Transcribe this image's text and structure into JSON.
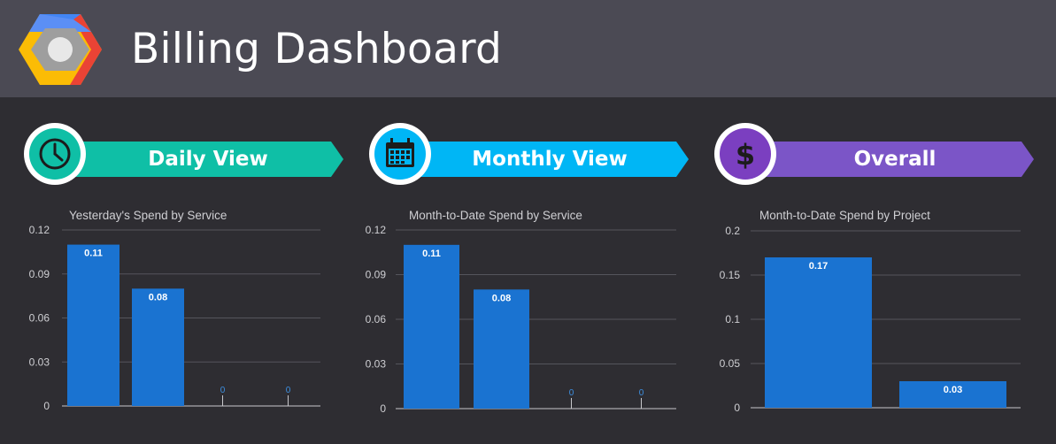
{
  "header": {
    "title": "Billing Dashboard",
    "logo_icon": "google-cloud-logo-icon"
  },
  "sections": [
    {
      "label": "Daily View",
      "icon": "clock-icon",
      "color": "#0fbfa6"
    },
    {
      "label": "Monthly View",
      "icon": "calendar-icon",
      "color": "#00b6f5"
    },
    {
      "label": "Overall",
      "icon": "dollar-icon",
      "color": "#7b55c7"
    }
  ],
  "chart_data": [
    {
      "type": "bar",
      "title": "Yesterday's Spend by Service",
      "categories": [
        "",
        "",
        "",
        ""
      ],
      "values": [
        0.11,
        0.08,
        0,
        0
      ],
      "data_labels": [
        "0.11",
        "0.08",
        "0",
        "0"
      ],
      "yticks": [
        "0.12",
        "0.09",
        "0.06",
        "0.03",
        "0"
      ],
      "ylim": [
        0,
        0.12
      ],
      "grid": true,
      "color": "#1a73d1"
    },
    {
      "type": "bar",
      "title": "Month-to-Date Spend by Service",
      "categories": [
        "",
        "",
        "",
        ""
      ],
      "values": [
        0.11,
        0.08,
        0,
        0
      ],
      "data_labels": [
        "0.11",
        "0.08",
        "0",
        "0"
      ],
      "yticks": [
        "0.12",
        "0.09",
        "0.06",
        "0.03",
        "0"
      ],
      "ylim": [
        0,
        0.12
      ],
      "grid": true,
      "color": "#1a73d1"
    },
    {
      "type": "bar",
      "title": "Month-to-Date Spend by Project",
      "categories": [
        "",
        ""
      ],
      "values": [
        0.17,
        0.03
      ],
      "data_labels": [
        "0.17",
        "0.03"
      ],
      "yticks": [
        "0.2",
        "0.15",
        "0.1",
        "0.05",
        "0"
      ],
      "ylim": [
        0,
        0.2
      ],
      "grid": true,
      "color": "#1a73d1"
    }
  ]
}
